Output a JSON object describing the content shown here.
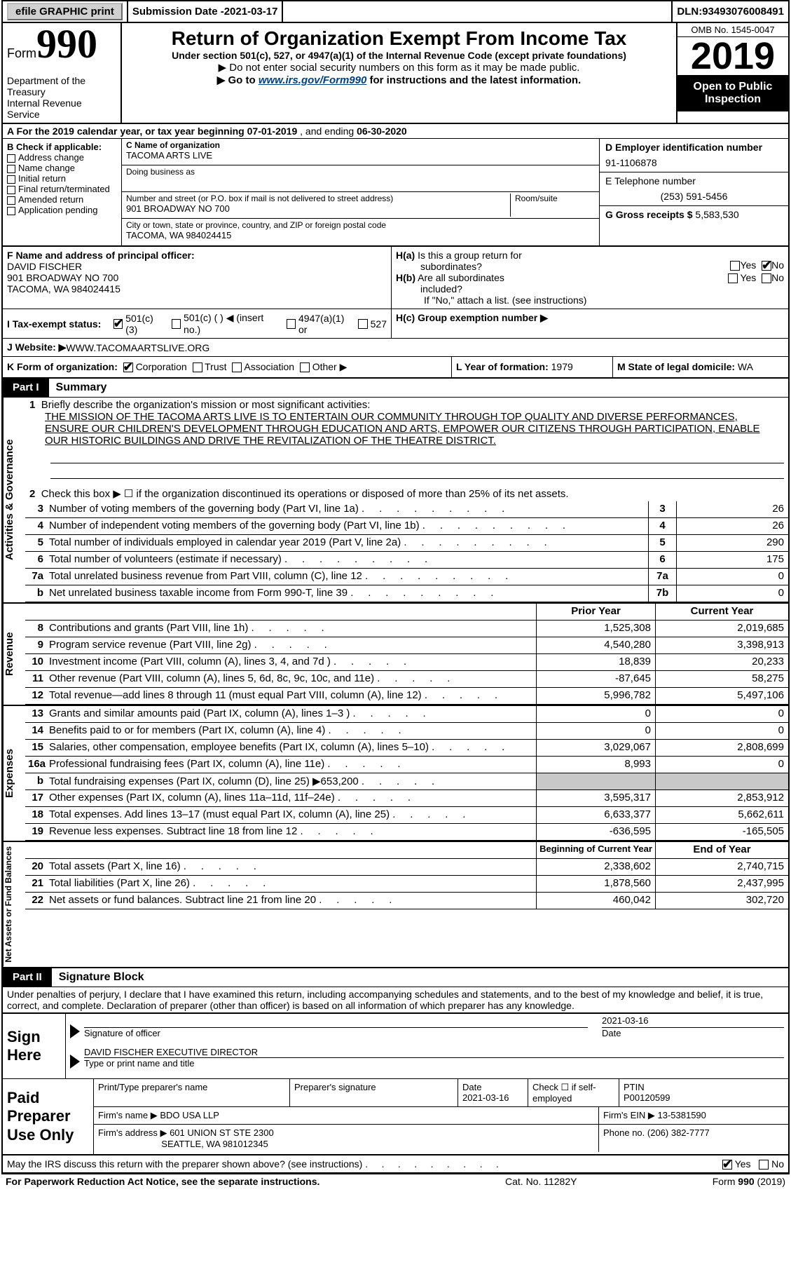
{
  "meta": {
    "efile_label": "efile GRAPHIC print",
    "submission_date_label": "Submission Date - ",
    "submission_date": "2021-03-17",
    "dln_label": "DLN: ",
    "dln": "93493076008491"
  },
  "header": {
    "form_word": "Form",
    "form_number": "990",
    "dept1": "Department of the Treasury",
    "dept2": "Internal Revenue Service",
    "title": "Return of Organization Exempt From Income Tax",
    "subtitle": "Under section 501(c), 527, or 4947(a)(1) of the Internal Revenue Code (except private foundations)",
    "note1": "▶ Do not enter social security numbers on this form as it may be made public.",
    "note2_pre": "▶ Go to ",
    "note2_link": "www.irs.gov/Form990",
    "note2_post": " for instructions and the latest information.",
    "omb": "OMB No. 1545-0047",
    "year": "2019",
    "open": "Open to Public Inspection"
  },
  "lineA": {
    "pre": "A For the 2019 calendar year, or tax year beginning ",
    "begin": "07-01-2019",
    "mid": "  , and ending ",
    "end": "06-30-2020"
  },
  "identB": {
    "label": "B Check if applicable:",
    "items": [
      "Address change",
      "Name change",
      "Initial return",
      "Final return/terminated",
      "Amended return",
      "Application pending"
    ]
  },
  "identC": {
    "name_label": "C Name of organization",
    "name": "TACOMA ARTS LIVE",
    "dba_label": "Doing business as",
    "dba": "",
    "street_label": "Number and street (or P.O. box if mail is not delivered to street address)",
    "room_label": "Room/suite",
    "street": "901 BROADWAY NO 700",
    "city_label": "City or town, state or province, country, and ZIP or foreign postal code",
    "city": "TACOMA, WA   984024415"
  },
  "identD": {
    "ein_label": "D Employer identification number",
    "ein": "91-1106878",
    "tel_label": "E Telephone number",
    "tel": "(253) 591-5456",
    "gross_label": "G Gross receipts $ ",
    "gross": "5,583,530"
  },
  "F": {
    "label": "F  Name and address of principal officer:",
    "name": "DAVID FISCHER",
    "street": "901 BROADWAY NO 700",
    "city": "TACOMA, WA   984024415"
  },
  "H": {
    "a_label": "H(a)  Is this a group return for subordinates?",
    "b_label": "H(b)  Are all subordinates included?",
    "b_note": "If \"No,\" attach a list. (see instructions)",
    "c_label": "H(c)  Group exemption number ▶",
    "yes": "Yes",
    "no": "No"
  },
  "I": {
    "label": "I    Tax-exempt status:",
    "o1": "501(c)(3)",
    "o2": "501(c) (  ) ◀ (insert no.)",
    "o3": "4947(a)(1) or",
    "o4": "527"
  },
  "J": {
    "label": "J    Website: ▶",
    "value": " WWW.TACOMAARTSLIVE.ORG"
  },
  "K": {
    "label": "K Form of organization:",
    "o1": "Corporation",
    "o2": "Trust",
    "o3": "Association",
    "o4": "Other ▶"
  },
  "L": {
    "label": "L Year of formation: ",
    "value": "1979"
  },
  "M": {
    "label": "M State of legal domicile: ",
    "value": "WA"
  },
  "part1": {
    "tag": "Part I",
    "title": "Summary"
  },
  "summary": {
    "tab1": "Activities & Governance",
    "tab2": "Revenue",
    "tab3": "Expenses",
    "tab4": "Net Assets or Fund Balances",
    "q1_label": "Briefly describe the organization's mission or most significant activities:",
    "q1_text": "THE MISSION OF THE TACOMA ARTS LIVE IS TO ENTERTAIN OUR COMMUNITY THROUGH TOP QUALITY AND DIVERSE PERFORMANCES, ENSURE OUR CHILDREN'S DEVELOPMENT THROUGH EDUCATION AND ARTS, EMPOWER OUR CITIZENS THROUGH PARTICIPATION, ENABLE OUR HISTORIC BUILDINGS AND DRIVE THE REVITALIZATION OF THE THEATRE DISTRICT.",
    "q2": "Check this box ▶ ☐  if the organization discontinued its operations or disposed of more than 25% of its net assets.",
    "rows_gov": [
      {
        "n": "3",
        "t": "Number of voting members of the governing body (Part VI, line 1a)",
        "b": "3",
        "v": "26"
      },
      {
        "n": "4",
        "t": "Number of independent voting members of the governing body (Part VI, line 1b)",
        "b": "4",
        "v": "26"
      },
      {
        "n": "5",
        "t": "Total number of individuals employed in calendar year 2019 (Part V, line 2a)",
        "b": "5",
        "v": "290"
      },
      {
        "n": "6",
        "t": "Total number of volunteers (estimate if necessary)",
        "b": "6",
        "v": "175"
      },
      {
        "n": "7a",
        "t": "Total unrelated business revenue from Part VIII, column (C), line 12",
        "b": "7a",
        "v": "0"
      },
      {
        "n": "b",
        "t": "Net unrelated business taxable income from Form 990-T, line 39",
        "b": "7b",
        "v": "0"
      }
    ],
    "col_prior": "Prior Year",
    "col_current": "Current Year",
    "rows_rev": [
      {
        "n": "8",
        "t": "Contributions and grants (Part VIII, line 1h)",
        "p": "1,525,308",
        "c": "2,019,685"
      },
      {
        "n": "9",
        "t": "Program service revenue (Part VIII, line 2g)",
        "p": "4,540,280",
        "c": "3,398,913"
      },
      {
        "n": "10",
        "t": "Investment income (Part VIII, column (A), lines 3, 4, and 7d )",
        "p": "18,839",
        "c": "20,233"
      },
      {
        "n": "11",
        "t": "Other revenue (Part VIII, column (A), lines 5, 6d, 8c, 9c, 10c, and 11e)",
        "p": "-87,645",
        "c": "58,275"
      },
      {
        "n": "12",
        "t": "Total revenue—add lines 8 through 11 (must equal Part VIII, column (A), line 12)",
        "p": "5,996,782",
        "c": "5,497,106"
      }
    ],
    "rows_exp": [
      {
        "n": "13",
        "t": "Grants and similar amounts paid (Part IX, column (A), lines 1–3 )",
        "p": "0",
        "c": "0"
      },
      {
        "n": "14",
        "t": "Benefits paid to or for members (Part IX, column (A), line 4)",
        "p": "0",
        "c": "0"
      },
      {
        "n": "15",
        "t": "Salaries, other compensation, employee benefits (Part IX, column (A), lines 5–10)",
        "p": "3,029,067",
        "c": "2,808,699"
      },
      {
        "n": "16a",
        "t": "Professional fundraising fees (Part IX, column (A), line 11e)",
        "p": "8,993",
        "c": "0"
      },
      {
        "n": "b",
        "t": "Total fundraising expenses (Part IX, column (D), line 25) ▶653,200",
        "p": "",
        "c": "",
        "shade": true
      },
      {
        "n": "17",
        "t": "Other expenses (Part IX, column (A), lines 11a–11d, 11f–24e)",
        "p": "3,595,317",
        "c": "2,853,912"
      },
      {
        "n": "18",
        "t": "Total expenses. Add lines 13–17 (must equal Part IX, column (A), line 25)",
        "p": "6,633,377",
        "c": "5,662,611"
      },
      {
        "n": "19",
        "t": "Revenue less expenses. Subtract line 18 from line 12",
        "p": "-636,595",
        "c": "-165,505"
      }
    ],
    "col_begin": "Beginning of Current Year",
    "col_end": "End of Year",
    "rows_net": [
      {
        "n": "20",
        "t": "Total assets (Part X, line 16)",
        "p": "2,338,602",
        "c": "2,740,715"
      },
      {
        "n": "21",
        "t": "Total liabilities (Part X, line 26)",
        "p": "1,878,560",
        "c": "2,437,995"
      },
      {
        "n": "22",
        "t": "Net assets or fund balances. Subtract line 21 from line 20",
        "p": "460,042",
        "c": "302,720"
      }
    ]
  },
  "part2": {
    "tag": "Part II",
    "title": "Signature Block"
  },
  "sig": {
    "penalty": "Under penalties of perjury, I declare that I have examined this return, including accompanying schedules and statements, and to the best of my knowledge and belief, it is true, correct, and complete. Declaration of preparer (other than officer) is based on all information of which preparer has any knowledge.",
    "sign_here": "Sign Here",
    "sig_officer": "Signature of officer",
    "sig_date": "2021-03-16",
    "date_lbl": "Date",
    "name_title": "DAVID FISCHER  EXECUTIVE DIRECTOR",
    "nt_lbl": "Type or print name and title"
  },
  "prep": {
    "label": "Paid Preparer Use Only",
    "c1": "Print/Type preparer's name",
    "c2": "Preparer's signature",
    "c3_lbl": "Date",
    "c3": "2021-03-16",
    "c4_lbl": "Check ☐ if self-employed",
    "c5_lbl": "PTIN",
    "c5": "P00120599",
    "firm_name_lbl": "Firm's name    ▶ ",
    "firm_name": "BDO USA LLP",
    "firm_ein_lbl": "Firm's EIN ▶ ",
    "firm_ein": "13-5381590",
    "firm_addr_lbl": "Firm's address ▶ ",
    "firm_addr1": "601 UNION ST STE 2300",
    "firm_addr2": "SEATTLE, WA   981012345",
    "phone_lbl": "Phone no. ",
    "phone": "(206) 382-7777"
  },
  "footer": {
    "may": "May the IRS discuss this return with the preparer shown above? (see instructions)",
    "yes": "Yes",
    "no": "No",
    "paperwork": "For Paperwork Reduction Act Notice, see the separate instructions.",
    "cat": "Cat. No. 11282Y",
    "formno": "Form 990 (2019)"
  },
  "style": {
    "colors": {
      "bg": "#ffffff",
      "text": "#000000",
      "link": "#004080",
      "shade": "#c8c8c8",
      "btn_bg": "#d0d0d0"
    },
    "fontsizes": {
      "body": 15,
      "title": 28,
      "year": 54,
      "formnum": 58,
      "small": 13,
      "tiny": 12
    }
  }
}
